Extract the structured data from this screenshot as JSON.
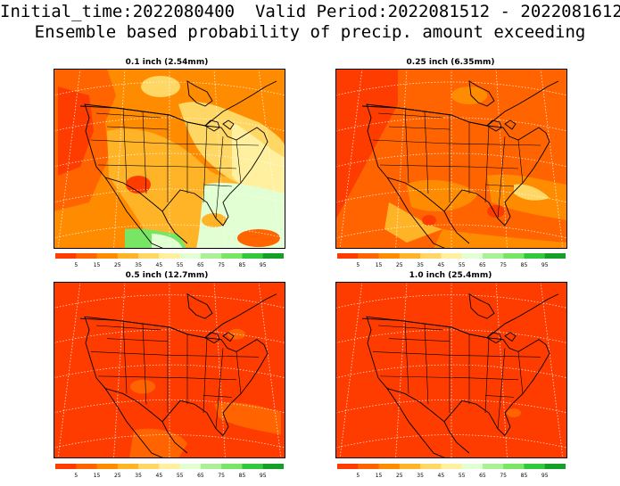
{
  "header": {
    "line1": "Initial_time:2022080400  Valid Period:2022081512 - 2022081612",
    "line2": "Ensemble based probability of precip. amount exceeding"
  },
  "panels": [
    {
      "title": "0.1 inch (2.54mm)",
      "level": "low"
    },
    {
      "title": "0.25 inch (6.35mm)",
      "level": "midlow"
    },
    {
      "title": "0.5 inch (12.7mm)",
      "level": "high"
    },
    {
      "title": "1.0 inch (25.4mm)",
      "level": "veryhigh"
    }
  ],
  "colorbar": {
    "ticks": [
      "5",
      "15",
      "25",
      "35",
      "45",
      "55",
      "65",
      "75",
      "85",
      "95"
    ],
    "colors": [
      "#ff3c00",
      "#ff6400",
      "#ff8c00",
      "#ffb428",
      "#ffd764",
      "#fff0a0",
      "#e1ffd2",
      "#aaf096",
      "#78e664",
      "#32c83c",
      "#14a028"
    ]
  },
  "colors": {
    "deep_orange": "#ff3c00",
    "orange": "#ff6400",
    "light_orange": "#ff8c00",
    "yellow_orange": "#ffb428",
    "pale_yellow": "#ffd764",
    "cream": "#fff0a0",
    "pale_green": "#e1ffd2",
    "green": "#78e664"
  }
}
